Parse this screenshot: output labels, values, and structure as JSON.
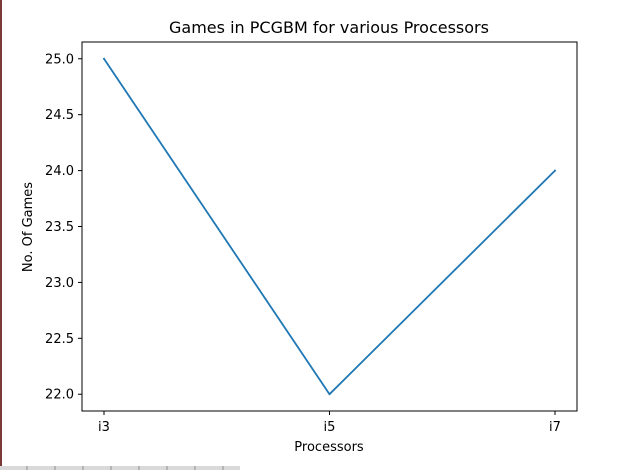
{
  "chart_data": {
    "type": "line",
    "title": "Games in PCGBM for various Processors",
    "xlabel": "Processors",
    "ylabel": "No. Of Games",
    "categories": [
      "i3",
      "i5",
      "i7"
    ],
    "series": [
      {
        "values": [
          25,
          22,
          24
        ],
        "color": "#1f77b4"
      }
    ],
    "ylim": [
      21.85,
      25.15
    ],
    "yticks": [
      22.0,
      22.5,
      23.0,
      23.5,
      24.0,
      24.5,
      25.0
    ],
    "ytick_labels": [
      "22.0",
      "22.5",
      "23.0",
      "23.5",
      "24.0",
      "24.5",
      "25.0"
    ],
    "grid": false,
    "legend": "none"
  }
}
